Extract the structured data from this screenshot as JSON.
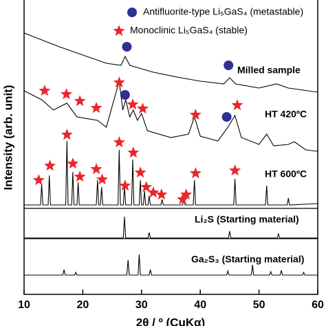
{
  "chart_data": {
    "type": "line",
    "x_label": "2θ / º (CuKα)",
    "y_label": "Intensity (arb. unit)",
    "xlim": [
      10,
      60
    ],
    "xticks": [
      10,
      20,
      30,
      40,
      50,
      60
    ],
    "ylim": [
      0,
      428
    ],
    "color": "#000000",
    "series": [
      {
        "name": "Milled sample",
        "x": [
          10,
          13,
          16,
          20,
          24,
          26.5,
          27.2,
          28,
          32,
          36,
          40,
          44,
          45,
          46,
          50,
          53,
          55,
          60
        ],
        "values": [
          380,
          370,
          360,
          348,
          336,
          333,
          346,
          333,
          323,
          316,
          310,
          306,
          315,
          306,
          300,
          306,
          300,
          294
        ]
      },
      {
        "name": "HT 420ºC",
        "x": [
          10,
          13,
          15,
          17.3,
          19,
          22.5,
          24,
          26.2,
          26.8,
          27.3,
          28,
          28.6,
          29.3,
          30,
          31,
          35,
          38,
          39,
          40,
          43,
          44.7,
          45.9,
          47,
          50,
          51.3,
          52.5,
          55,
          56,
          58,
          60
        ],
        "values": [
          296,
          283,
          268,
          278,
          258,
          253,
          243,
          310,
          268,
          283,
          258,
          268,
          253,
          263,
          238,
          228,
          233,
          258,
          230,
          223,
          243,
          260,
          228,
          218,
          233,
          216,
          218,
          222,
          210,
          208
        ]
      },
      {
        "name": "HT 600ºC",
        "x": [
          10,
          12.8,
          13,
          13.2,
          14.1,
          14.3,
          14.5,
          17.1,
          17.3,
          17.5,
          18.1,
          18.3,
          18.5,
          19.0,
          19.2,
          19.4,
          22.3,
          22.5,
          22.7,
          23.0,
          23.2,
          23.4,
          26.0,
          26.2,
          26.4,
          26.9,
          27.1,
          27.3,
          28.3,
          28.5,
          28.7,
          29.6,
          29.8,
          30.0,
          30.3,
          30.5,
          30.7,
          31.1,
          31.3,
          31.5,
          33.3,
          33.5,
          33.7,
          37.0,
          37.2,
          37.4,
          38.8,
          39.0,
          39.2,
          45.7,
          45.9,
          46.1,
          51.1,
          51.3,
          51.5,
          54.8,
          55.0,
          55.2,
          60
        ],
        "values": [
          130,
          130,
          160,
          130,
          130,
          173,
          130,
          130,
          223,
          130,
          130,
          178,
          130,
          130,
          163,
          130,
          130,
          166,
          130,
          130,
          156,
          130,
          130,
          210,
          130,
          130,
          156,
          130,
          130,
          196,
          130,
          130,
          166,
          130,
          130,
          150,
          130,
          130,
          143,
          130,
          130,
          138,
          130,
          130,
          138,
          130,
          130,
          166,
          130,
          130,
          168,
          130,
          130,
          158,
          130,
          130,
          140,
          130,
          132
        ]
      },
      {
        "name": "Li₂S (Starting material)",
        "x": [
          10,
          26.9,
          27.1,
          27.3,
          31.1,
          31.3,
          31.5,
          44.8,
          45,
          45.2,
          53.1,
          53.3,
          53.5,
          60
        ],
        "values": [
          82,
          82,
          113,
          82,
          82,
          90,
          82,
          82,
          92,
          82,
          82,
          88,
          82,
          82
        ]
      },
      {
        "name": "Ga₂S₃ (Starting material)",
        "x": [
          10,
          16.6,
          16.8,
          17,
          18.6,
          18.8,
          19,
          27.5,
          27.7,
          27.9,
          29.4,
          29.6,
          29.8,
          31.3,
          31.5,
          31.7,
          44.5,
          44.7,
          44.9,
          48.7,
          48.9,
          49.1,
          51.8,
          52,
          52.2,
          53.6,
          53.8,
          54,
          57.4,
          57.6,
          57.8,
          60
        ],
        "values": [
          28,
          28,
          36,
          28,
          28,
          32,
          28,
          28,
          50,
          28,
          28,
          58,
          28,
          28,
          36,
          28,
          28,
          34,
          28,
          28,
          43,
          28,
          28,
          33,
          28,
          28,
          35,
          28,
          28,
          32,
          28,
          28
        ]
      }
    ],
    "marker_series": [
      {
        "name": "Antifluorite-type Li₅GaS₄ (metastable)",
        "shape": "circle",
        "color": "#2e3192",
        "x": [
          27.5,
          44.8,
          27.2,
          44.5
        ],
        "values": [
          360,
          333,
          290,
          258
        ]
      },
      {
        "name": "Monoclinic Li₅GaS₄ (stable)",
        "shape": "star",
        "color": "#e8272c",
        "x": [
          13.5,
          17.2,
          19.5,
          22.3,
          26.2,
          28.5,
          30.2,
          39.2,
          46.3,
          12.5,
          14.4,
          17.3,
          18.3,
          19.5,
          22.3,
          23.3,
          26.2,
          27.2,
          28.6,
          29.8,
          30.8,
          32,
          33.4,
          37,
          37.6,
          39.2,
          45.9
        ],
        "values": [
          296,
          291,
          281,
          271,
          308,
          276,
          270,
          261,
          275,
          166,
          187,
          232,
          190,
          171,
          182,
          167,
          221,
          158,
          206,
          177,
          156,
          148,
          145,
          138,
          145,
          176,
          180
        ]
      }
    ]
  }
}
